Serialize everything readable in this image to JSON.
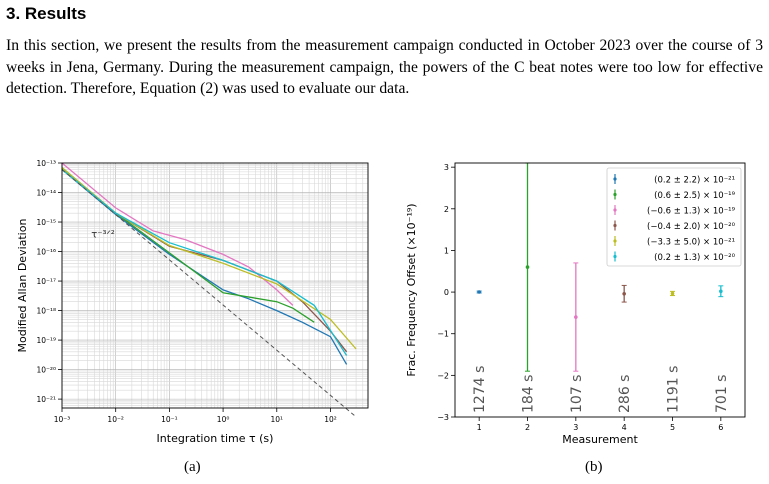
{
  "section": {
    "heading": "3.   Results",
    "paragraph": "In this section, we present the results from the measurement campaign conducted in October 2023 over the course of 3 weeks in Jena, Germany. During the measurement campaign, the powers of the C beat notes were too low for effective detection. Therefore, Equation (2) was used to evaluate our data."
  },
  "captions": {
    "a": "(a)",
    "b": "(b)"
  },
  "chart_data": [
    {
      "type": "line",
      "xlabel": "Integration time τ (s)",
      "ylabel": "Modified Allan Deviation",
      "xscale": "log",
      "yscale": "log",
      "xlim": [
        0.001,
        500
      ],
      "ylim": [
        5e-22,
        1e-13
      ],
      "grid": true,
      "x_ticks": [
        "10⁻³",
        "10⁻²",
        "10⁻¹",
        "10⁰",
        "10¹",
        "10²"
      ],
      "y_ticks": [
        "10⁻²¹",
        "10⁻²⁰",
        "10⁻¹⁹",
        "10⁻¹⁸",
        "10⁻¹⁷",
        "10⁻¹⁶",
        "10⁻¹⁵",
        "10⁻¹⁴",
        "10⁻¹³"
      ],
      "annotation": "τ⁻³ᐟ²",
      "series": [
        {
          "color": "#1f77b4",
          "x": [
            0.001,
            0.01,
            0.1,
            1,
            3,
            10,
            30,
            100,
            200
          ],
          "y": [
            6e-14,
            1.8e-15,
            8e-17,
            5e-18,
            2.5e-18,
            1e-18,
            4e-19,
            1.3e-19,
            1.5e-20
          ]
        },
        {
          "color": "#2ca02c",
          "x": [
            0.001,
            0.01,
            0.1,
            1,
            10,
            20,
            50
          ],
          "y": [
            7e-14,
            2e-15,
            9e-17,
            4e-18,
            2e-18,
            1.2e-18,
            4e-19
          ]
        },
        {
          "color": "#e377c2",
          "x": [
            0.001,
            0.01,
            0.05,
            0.2,
            1,
            3,
            10,
            20
          ],
          "y": [
            1e-13,
            3e-15,
            5e-16,
            2.5e-16,
            8e-17,
            3e-17,
            5e-18,
            1.5e-18
          ]
        },
        {
          "color": "#8c564b",
          "x": [
            0.001,
            0.01,
            0.1,
            1,
            10,
            30,
            100,
            200
          ],
          "y": [
            6e-14,
            2e-15,
            1.5e-16,
            5e-17,
            1e-17,
            2e-18,
            2e-19,
            4e-20
          ]
        },
        {
          "color": "#bcbd22",
          "x": [
            0.001,
            0.01,
            0.1,
            1,
            10,
            100,
            300
          ],
          "y": [
            7e-14,
            2e-15,
            1.6e-16,
            4e-17,
            8e-18,
            5e-19,
            5e-20
          ]
        },
        {
          "color": "#17becf",
          "x": [
            0.001,
            0.01,
            0.1,
            1,
            10,
            50,
            200
          ],
          "y": [
            6e-14,
            2e-15,
            2e-16,
            5e-17,
            1e-17,
            1.5e-18,
            3e-20
          ]
        },
        {
          "color": "#555555",
          "dashed": true,
          "x": [
            0.001,
            300
          ],
          "y": [
            6e-14,
            2.5e-22
          ]
        }
      ]
    },
    {
      "type": "scatter",
      "xlabel": "Measurement",
      "ylabel": "Frac. Frequency Offset (×10⁻¹⁹)",
      "xlim": [
        0.5,
        6.5
      ],
      "ylim": [
        -3,
        3.1
      ],
      "grid": false,
      "x_ticks": [
        "1",
        "2",
        "3",
        "4",
        "5",
        "6"
      ],
      "y_ticks": [
        "−3",
        "−2",
        "−1",
        "0",
        "1",
        "2",
        "3"
      ],
      "legend_position": "top-right",
      "points": [
        {
          "x": 1,
          "y": 0.002,
          "err": 0.022,
          "color": "#1f77b4",
          "legend": "(0.2 ± 2.2) × 10⁻²¹",
          "duration": "1274 s"
        },
        {
          "x": 2,
          "y": 0.6,
          "err": 2.5,
          "color": "#2ca02c",
          "legend": "(0.6 ± 2.5) × 10⁻¹⁹",
          "duration": "184 s"
        },
        {
          "x": 3,
          "y": -0.6,
          "err": 1.3,
          "color": "#e377c2",
          "legend": "(−0.6 ± 1.3) × 10⁻¹⁹",
          "duration": "107 s"
        },
        {
          "x": 4,
          "y": -0.04,
          "err": 0.2,
          "color": "#8c564b",
          "legend": "(−0.4 ± 2.0) × 10⁻²⁰",
          "duration": "286 s"
        },
        {
          "x": 5,
          "y": -0.033,
          "err": 0.05,
          "color": "#bcbd22",
          "legend": "(−3.3 ± 5.0) × 10⁻²¹",
          "duration": "1191 s"
        },
        {
          "x": 6,
          "y": 0.02,
          "err": 0.13,
          "color": "#17becf",
          "legend": "(0.2 ± 1.3) × 10⁻²⁰",
          "duration": "701 s"
        }
      ]
    }
  ]
}
